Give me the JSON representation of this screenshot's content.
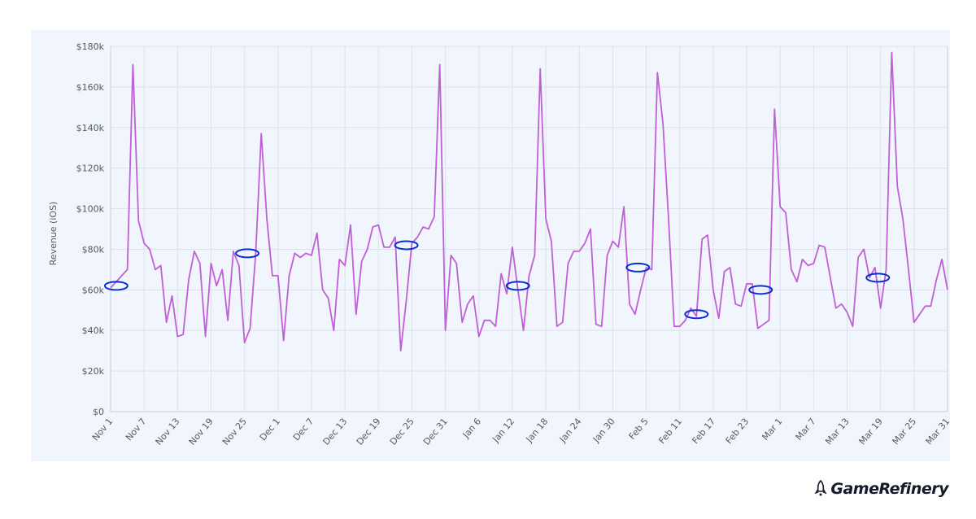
{
  "chart_data": {
    "type": "line",
    "title": "",
    "xlabel": "",
    "ylabel": "Revenue (iOS)",
    "ylim": [
      0,
      180000
    ],
    "yticks": [
      0,
      20000,
      40000,
      60000,
      80000,
      100000,
      120000,
      140000,
      160000,
      180000
    ],
    "ytick_labels": [
      "$0",
      "$20k",
      "$40k",
      "$60k",
      "$80k",
      "$100k",
      "$120k",
      "$140k",
      "$160k",
      "$180k"
    ],
    "x_start": "Nov 1",
    "x_end": "Mar 31",
    "xtick_labels": [
      "Nov 1",
      "Nov 7",
      "Nov 13",
      "Nov 19",
      "Nov 25",
      "Dec 1",
      "Dec 7",
      "Dec 13",
      "Dec 19",
      "Dec 25",
      "Dec 31",
      "Jan 6",
      "Jan 12",
      "Jan 18",
      "Jan 24",
      "Jan 30",
      "Feb 5",
      "Feb 11",
      "Feb 17",
      "Feb 23",
      "Mar 1",
      "Mar 7",
      "Mar 13",
      "Mar 19",
      "Mar 25",
      "Mar 31"
    ],
    "grid": true,
    "line_color": "#c060d8",
    "annotation_color": "#0a2fd0",
    "values_k": [
      61,
      64,
      67,
      70,
      171,
      94,
      83,
      80,
      70,
      72,
      44,
      57,
      37,
      38,
      65,
      79,
      73,
      37,
      73,
      62,
      70,
      45,
      79,
      72,
      34,
      41,
      78,
      137,
      95,
      67,
      67,
      35,
      67,
      78,
      76,
      78,
      77,
      88,
      60,
      56,
      40,
      75,
      72,
      92,
      48,
      74,
      80,
      91,
      92,
      81,
      81,
      86,
      30,
      55,
      83,
      86,
      91,
      90,
      96,
      171,
      40,
      77,
      73,
      44,
      53,
      57,
      37,
      45,
      45,
      42,
      68,
      58,
      81,
      60,
      40,
      67,
      77,
      169,
      95,
      84,
      42,
      44,
      73,
      79,
      79,
      83,
      90,
      43,
      42,
      77,
      84,
      81,
      101,
      53,
      48,
      60,
      71,
      70,
      167,
      142,
      95,
      42,
      42,
      45,
      51,
      47,
      85,
      87,
      60,
      46,
      69,
      71,
      53,
      52,
      63,
      63,
      41,
      43,
      45,
      149,
      101,
      98,
      70,
      64,
      75,
      72,
      73,
      82,
      81,
      66,
      51,
      53,
      49,
      42,
      76,
      80,
      66,
      71,
      51,
      70,
      177,
      111,
      95,
      70,
      44,
      48,
      52,
      52,
      65,
      75,
      60
    ],
    "annotations_ellipse": [
      {
        "day": 1,
        "value_k": 62
      },
      {
        "day": 24.5,
        "value_k": 78
      },
      {
        "day": 53,
        "value_k": 82
      },
      {
        "day": 73,
        "value_k": 62
      },
      {
        "day": 94.5,
        "value_k": 71
      },
      {
        "day": 105,
        "value_k": 48
      },
      {
        "day": 116.5,
        "value_k": 60
      },
      {
        "day": 137.5,
        "value_k": 66
      }
    ]
  },
  "logo": {
    "text": "GameRefinery"
  }
}
